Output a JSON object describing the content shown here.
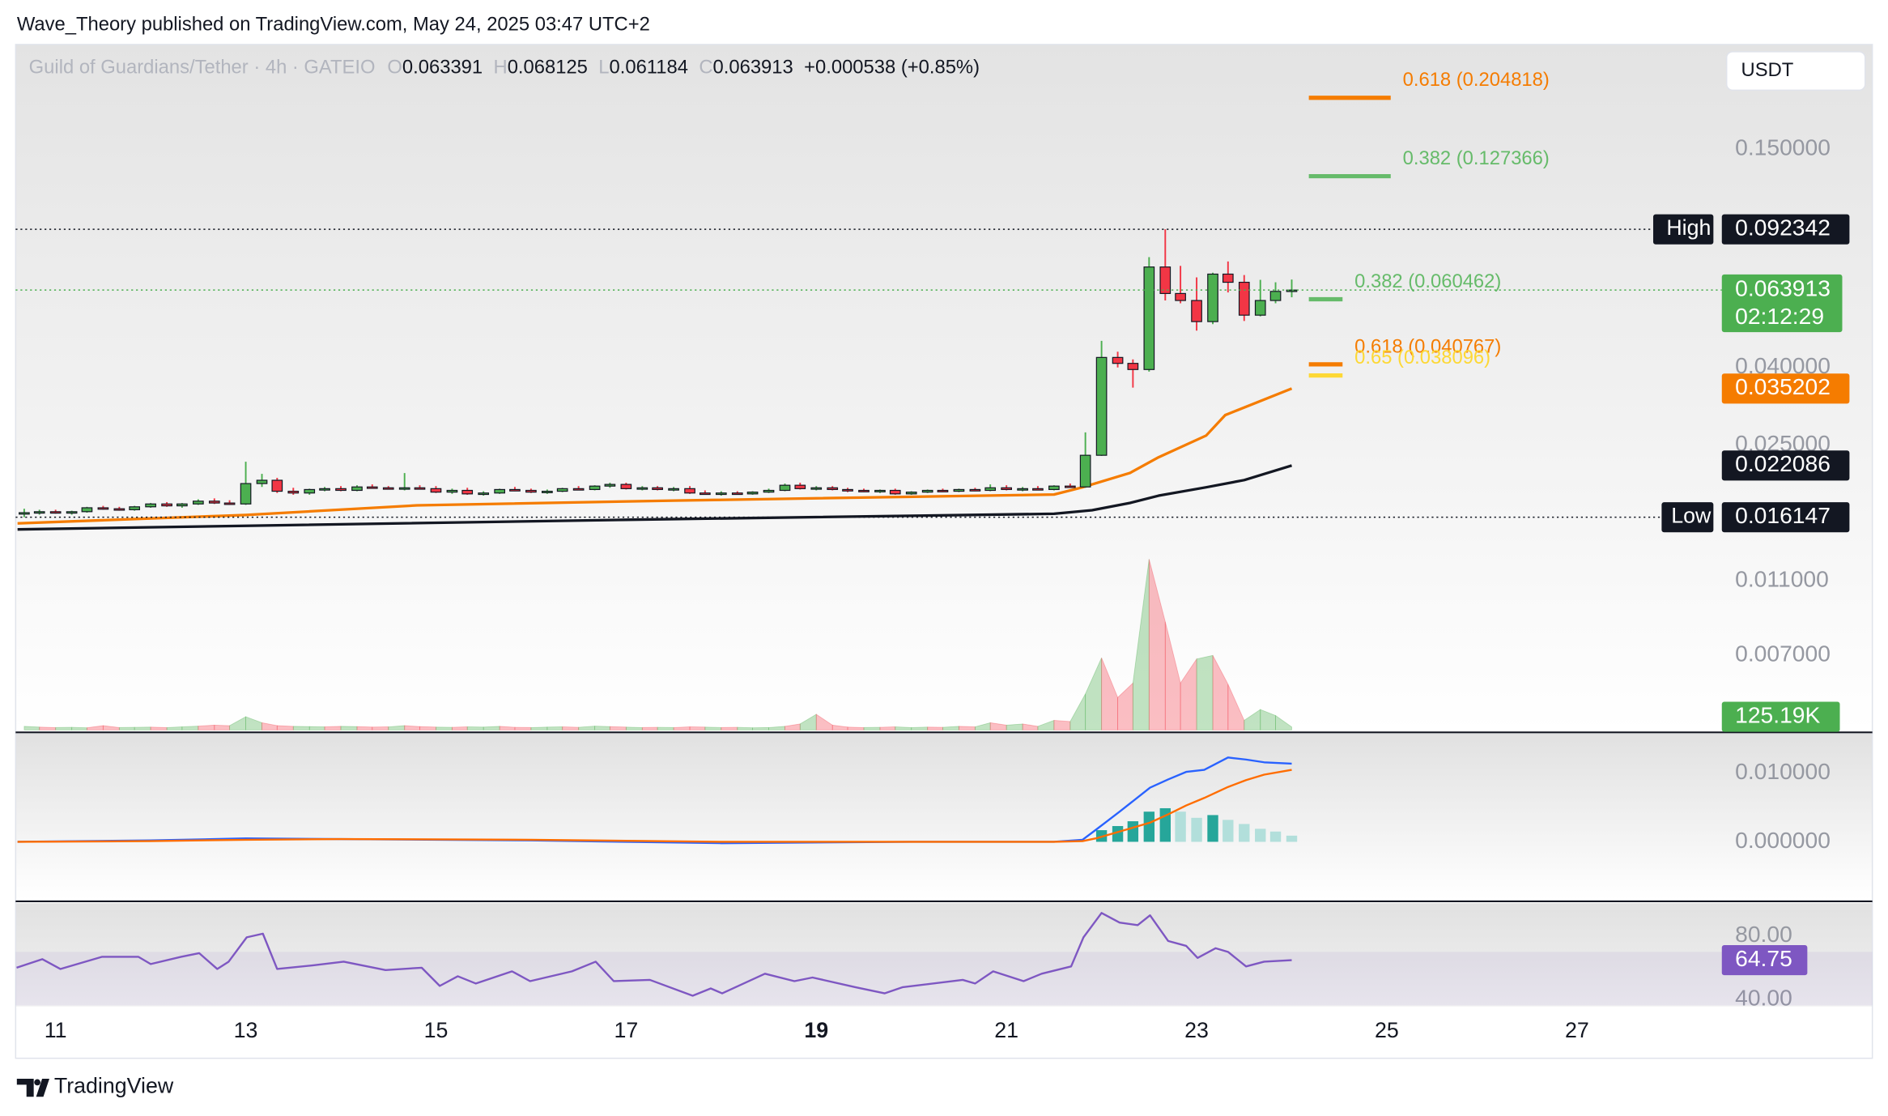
{
  "header": {
    "published": "Wave_Theory published on TradingView.com, May 24, 2025 03:47 UTC+2"
  },
  "footer": {
    "brand": "TradingView"
  },
  "chart_data": [
    {
      "type": "candlestick",
      "title": "Guild of Guardians/Tether · 4h · GATEIO",
      "ohlc": [
        {
          "label": "O",
          "value": 0.063391
        },
        {
          "label": "H",
          "value": 0.068125
        },
        {
          "label": "L",
          "value": 0.061184
        },
        {
          "label": "C",
          "value": 0.063913
        }
      ],
      "change": "+0.000538 (+0.85%)",
      "currency": "USDT",
      "log_scale": true,
      "colors": {
        "up": "#4caf50",
        "down": "#f23645"
      },
      "xlim": [
        10.58,
        28.46
      ],
      "xticks": [
        11,
        13,
        15,
        17,
        19,
        21,
        23,
        25,
        27
      ],
      "bold_xtick": 19,
      "ylim": [
        0.00442,
        0.2828
      ],
      "yticks": [
        {
          "value": 0.15,
          "label": "0.150000"
        },
        {
          "value": 0.04,
          "label": "0.040000"
        },
        {
          "value": 0.025,
          "label": "0.025000"
        },
        {
          "value": 0.011,
          "label": "0.011000"
        },
        {
          "value": 0.007,
          "label": "0.007000"
        }
      ],
      "x": [
        10.67,
        10.83,
        11,
        11.17,
        11.33,
        11.5,
        11.67,
        11.83,
        12,
        12.17,
        12.33,
        12.5,
        12.67,
        12.83,
        13,
        13.17,
        13.33,
        13.5,
        13.67,
        13.83,
        14,
        14.17,
        14.33,
        14.5,
        14.67,
        14.83,
        15,
        15.17,
        15.33,
        15.5,
        15.67,
        15.83,
        16,
        16.17,
        16.33,
        16.5,
        16.67,
        16.83,
        17,
        17.17,
        17.33,
        17.5,
        17.67,
        17.83,
        18,
        18.17,
        18.33,
        18.5,
        18.67,
        18.83,
        19,
        19.17,
        19.33,
        19.5,
        19.67,
        19.83,
        20,
        20.17,
        20.33,
        20.5,
        20.67,
        20.83,
        21,
        21.17,
        21.33,
        21.5,
        21.67,
        21.83,
        22,
        22.17,
        22.33,
        22.5,
        22.67,
        22.83,
        23,
        23.17,
        23.33,
        23.5,
        23.67,
        23.83,
        24
      ],
      "candles": [
        [
          0.0165,
          0.017,
          0.01615,
          0.0166
        ],
        [
          0.0166,
          0.0169,
          0.0164,
          0.0167
        ],
        [
          0.0167,
          0.0169,
          0.0165,
          0.0166
        ],
        [
          0.0166,
          0.0168,
          0.0164,
          0.0167
        ],
        [
          0.0167,
          0.0172,
          0.0166,
          0.0171
        ],
        [
          0.0171,
          0.0173,
          0.0169,
          0.017
        ],
        [
          0.017,
          0.0172,
          0.0168,
          0.0169
        ],
        [
          0.0169,
          0.0173,
          0.0168,
          0.0172
        ],
        [
          0.0172,
          0.0176,
          0.0171,
          0.0175
        ],
        [
          0.0175,
          0.0177,
          0.0172,
          0.0173
        ],
        [
          0.0173,
          0.0176,
          0.0171,
          0.0175
        ],
        [
          0.0175,
          0.018,
          0.0174,
          0.0178
        ],
        [
          0.0178,
          0.0181,
          0.0175,
          0.0176
        ],
        [
          0.0176,
          0.0179,
          0.0174,
          0.0175
        ],
        [
          0.0175,
          0.0226,
          0.0174,
          0.0198
        ],
        [
          0.0198,
          0.021,
          0.0194,
          0.0202
        ],
        [
          0.0202,
          0.0205,
          0.0187,
          0.0189
        ],
        [
          0.0189,
          0.0193,
          0.0185,
          0.0187
        ],
        [
          0.0187,
          0.0192,
          0.0185,
          0.0191
        ],
        [
          0.0191,
          0.0194,
          0.0189,
          0.0192
        ],
        [
          0.0192,
          0.0195,
          0.0189,
          0.019
        ],
        [
          0.019,
          0.0196,
          0.0189,
          0.0194
        ],
        [
          0.0194,
          0.0197,
          0.0192,
          0.0193
        ],
        [
          0.0193,
          0.0195,
          0.0191,
          0.0192
        ],
        [
          0.0192,
          0.0211,
          0.019,
          0.0193
        ],
        [
          0.0193,
          0.0196,
          0.0191,
          0.0192
        ],
        [
          0.0192,
          0.0195,
          0.0187,
          0.0188
        ],
        [
          0.0188,
          0.0192,
          0.0186,
          0.019
        ],
        [
          0.019,
          0.0193,
          0.0185,
          0.0186
        ],
        [
          0.0186,
          0.0189,
          0.0184,
          0.0187
        ],
        [
          0.0187,
          0.0192,
          0.0186,
          0.0191
        ],
        [
          0.0191,
          0.0194,
          0.0189,
          0.019
        ],
        [
          0.019,
          0.0192,
          0.0187,
          0.0188
        ],
        [
          0.0188,
          0.0191,
          0.0186,
          0.0189
        ],
        [
          0.0189,
          0.0193,
          0.0188,
          0.0192
        ],
        [
          0.0192,
          0.0195,
          0.019,
          0.0191
        ],
        [
          0.0191,
          0.0196,
          0.019,
          0.0195
        ],
        [
          0.0195,
          0.0199,
          0.0193,
          0.0197
        ],
        [
          0.0197,
          0.0199,
          0.0191,
          0.0192
        ],
        [
          0.0192,
          0.0195,
          0.019,
          0.0193
        ],
        [
          0.0193,
          0.0195,
          0.019,
          0.0191
        ],
        [
          0.0191,
          0.0194,
          0.0189,
          0.0192
        ],
        [
          0.0192,
          0.0195,
          0.0186,
          0.0187
        ],
        [
          0.0187,
          0.019,
          0.0185,
          0.0186
        ],
        [
          0.0186,
          0.0189,
          0.0184,
          0.0187
        ],
        [
          0.0187,
          0.0189,
          0.0185,
          0.0186
        ],
        [
          0.0186,
          0.0189,
          0.0185,
          0.0188
        ],
        [
          0.0188,
          0.0192,
          0.0187,
          0.019
        ],
        [
          0.019,
          0.0198,
          0.0189,
          0.0196
        ],
        [
          0.0196,
          0.0199,
          0.0191,
          0.0192
        ],
        [
          0.0192,
          0.0195,
          0.019,
          0.0193
        ],
        [
          0.0193,
          0.0195,
          0.019,
          0.0191
        ],
        [
          0.0191,
          0.0193,
          0.0188,
          0.019
        ],
        [
          0.019,
          0.0192,
          0.0188,
          0.0189
        ],
        [
          0.0189,
          0.0191,
          0.0187,
          0.019
        ],
        [
          0.019,
          0.0192,
          0.0185,
          0.0186
        ],
        [
          0.0186,
          0.0189,
          0.0185,
          0.0188
        ],
        [
          0.0188,
          0.0191,
          0.0187,
          0.019
        ],
        [
          0.019,
          0.0192,
          0.0188,
          0.0189
        ],
        [
          0.0189,
          0.0192,
          0.0188,
          0.0191
        ],
        [
          0.0191,
          0.0193,
          0.0189,
          0.019
        ],
        [
          0.019,
          0.0197,
          0.0189,
          0.0193
        ],
        [
          0.0193,
          0.0196,
          0.019,
          0.0191
        ],
        [
          0.0191,
          0.0194,
          0.0189,
          0.0192
        ],
        [
          0.0192,
          0.0195,
          0.019,
          0.0191
        ],
        [
          0.0191,
          0.0196,
          0.019,
          0.0195
        ],
        [
          0.0195,
          0.0198,
          0.0193,
          0.0194
        ],
        [
          0.0194,
          0.027,
          0.0193,
          0.0235
        ],
        [
          0.0235,
          0.047,
          0.0234,
          0.0425
        ],
        [
          0.0425,
          0.044,
          0.04,
          0.041
        ],
        [
          0.041,
          0.042,
          0.0354,
          0.0395
        ],
        [
          0.0395,
          0.078,
          0.039,
          0.0735
        ],
        [
          0.0735,
          0.092342,
          0.06,
          0.0626
        ],
        [
          0.0626,
          0.074,
          0.059,
          0.06
        ],
        [
          0.06,
          0.069,
          0.05,
          0.0528
        ],
        [
          0.0528,
          0.071,
          0.052,
          0.0704
        ],
        [
          0.0704,
          0.076,
          0.063,
          0.067
        ],
        [
          0.067,
          0.07,
          0.053,
          0.0549
        ],
        [
          0.0549,
          0.068,
          0.0545,
          0.06
        ],
        [
          0.06,
          0.067,
          0.059,
          0.0634
        ],
        [
          0.063391,
          0.068125,
          0.061184,
          0.063913
        ]
      ],
      "volume": {
        "ylim": [
          0,
          7100
        ],
        "up_color": "rgba(76,175,80,0.35)",
        "down_color": "rgba(242,54,69,0.32)",
        "label_color": "#4caf50",
        "last_label": "125.19K",
        "values": [
          150,
          120,
          100,
          110,
          90,
          180,
          100,
          110,
          120,
          100,
          130,
          160,
          200,
          180,
          550,
          300,
          180,
          150,
          140,
          130,
          150,
          140,
          120,
          130,
          180,
          140,
          120,
          110,
          130,
          120,
          150,
          110,
          100,
          120,
          130,
          110,
          160,
          140,
          120,
          100,
          110,
          100,
          130,
          120,
          100,
          110,
          90,
          100,
          150,
          250,
          650,
          200,
          120,
          100,
          110,
          130,
          100,
          120,
          110,
          150,
          130,
          300,
          200,
          250,
          150,
          400,
          350,
          1500,
          3000,
          1350,
          1950,
          7100,
          4500,
          1950,
          2950,
          3100,
          1900,
          400,
          850,
          600,
          125.19
        ]
      },
      "series": [
        {
          "color": "#f57c00",
          "x": [
            10.6,
            13,
            14.8,
            17.5,
            21.5,
            21.8,
            22.3,
            22.6,
            23.1,
            23.3,
            24
          ],
          "values": [
            0.01556,
            0.01637,
            0.01735,
            0.01786,
            0.01853,
            0.01936,
            0.02112,
            0.02322,
            0.02648,
            0.02997,
            0.035202
          ]
        },
        {
          "color": "#131722",
          "x": [
            10.6,
            13,
            17,
            21.5,
            21.9,
            22.3,
            22.6,
            23.1,
            23.5,
            24
          ],
          "values": [
            0.015,
            0.01533,
            0.0159,
            0.01649,
            0.01685,
            0.01761,
            0.0184,
            0.01936,
            0.02022,
            0.022086
          ]
        }
      ],
      "high": {
        "label": "High",
        "value": 0.092342
      },
      "low": {
        "label": "Low",
        "value": 0.016147
      },
      "last": {
        "value": 0.063913,
        "countdown": "02:12:29",
        "color": "#4caf50"
      },
      "fib_levels": [
        {
          "label": "0.618 (0.204818)",
          "value": 0.204818,
          "color": "#f57c00"
        },
        {
          "label": "0.382 (0.127366)",
          "value": 0.127366,
          "color": "#66bb6a"
        },
        {
          "label": "0.382 (0.060462)",
          "value": 0.060462,
          "color": "#66bb6a"
        },
        {
          "label": "0.618 (0.040767)",
          "value": 0.040767,
          "color": "#f57c00"
        },
        {
          "label": "0.65 (0.038096)",
          "value": 0.038096,
          "color": "#fdd835"
        }
      ]
    },
    {
      "type": "line",
      "ylim": [
        -0.00842,
        0.01579
      ],
      "yticks": [
        {
          "value": 0.01,
          "label": "0.010000"
        },
        {
          "value": 0,
          "label": "0.000000"
        }
      ],
      "x": [
        10.6,
        12,
        13,
        14,
        16,
        18,
        20,
        21.5,
        21.8,
        21.94,
        22.19,
        22.51,
        22.7,
        22.89,
        23.08,
        23.33,
        23.52,
        23.71,
        24
      ],
      "series": [
        {
          "color": "#2962ff",
          "values": [
            0,
            0.0002,
            0.0005,
            0.0004,
            0.0002,
            -0.0002,
            0,
            0,
            0.0003,
            0.00175,
            0.0044,
            0.0079,
            0.0091,
            0.0102,
            0.0105,
            0.0123,
            0.012,
            0.0116,
            0.0114
          ]
        },
        {
          "color": "#ff6d00",
          "values": [
            0,
            0.0001,
            0.0003,
            0.0004,
            0.0003,
            0,
            0,
            0,
            0.0001,
            0.0005,
            0.0015,
            0.0028,
            0.004,
            0.0053,
            0.0064,
            0.008,
            0.009,
            0.0098,
            0.0105
          ]
        }
      ],
      "histogram": {
        "x": [
          22,
          22.17,
          22.33,
          22.5,
          22.67,
          22.83,
          23,
          23.17,
          23.33,
          23.5,
          23.67,
          23.83,
          24
        ],
        "values": [
          0.0017,
          0.0023,
          0.003,
          0.0044,
          0.0049,
          0.0044,
          0.0035,
          0.0039,
          0.0032,
          0.0026,
          0.0019,
          0.0015,
          0.0009
        ],
        "colors": [
          "#26a69a",
          "#b2dfdb"
        ]
      }
    },
    {
      "type": "line",
      "ylim": [
        36.2,
        100.8
      ],
      "yticks": [
        {
          "value": 80,
          "label": "80.00"
        },
        {
          "value": 40,
          "label": "40.00"
        }
      ],
      "band": [
        30,
        70
      ],
      "band_color": "rgba(126,87,194,0.09)",
      "x": [
        10.59,
        10.86,
        11.05,
        11.49,
        11.87,
        12,
        12.32,
        12.51,
        12.7,
        12.82,
        13.01,
        13.18,
        13.33,
        13.71,
        14.03,
        14.47,
        14.85,
        15.04,
        15.23,
        15.42,
        15.8,
        15.99,
        16.43,
        16.68,
        16.87,
        17.25,
        17.7,
        17.89,
        18.01,
        18.46,
        18.77,
        18.96,
        19.41,
        19.72,
        19.91,
        20.54,
        20.67,
        20.86,
        21.18,
        21.37,
        21.68,
        21.81,
        22,
        22.19,
        22.38,
        22.51,
        22.7,
        22.89,
        23.01,
        23.2,
        23.33,
        23.52,
        23.71,
        24
      ],
      "series": [
        {
          "color": "#7e57c2",
          "values": [
            60,
            65.4,
            59.2,
            66.9,
            66.9,
            62.3,
            66.9,
            69.2,
            59.2,
            63.8,
            79.2,
            81.5,
            59.2,
            61.5,
            63.8,
            58.5,
            60,
            48.5,
            54.6,
            50,
            57.7,
            51.5,
            57.7,
            63.8,
            51.5,
            52.3,
            42.3,
            46.9,
            43.8,
            56.2,
            51.5,
            53.8,
            47.7,
            43.8,
            47.7,
            52.3,
            50,
            57.7,
            51.5,
            56.2,
            60.8,
            79.2,
            94.6,
            88.5,
            86.9,
            93.1,
            76.9,
            73.8,
            66.2,
            72.3,
            70,
            60.8,
            63.8,
            64.75
          ]
        }
      ]
    }
  ]
}
